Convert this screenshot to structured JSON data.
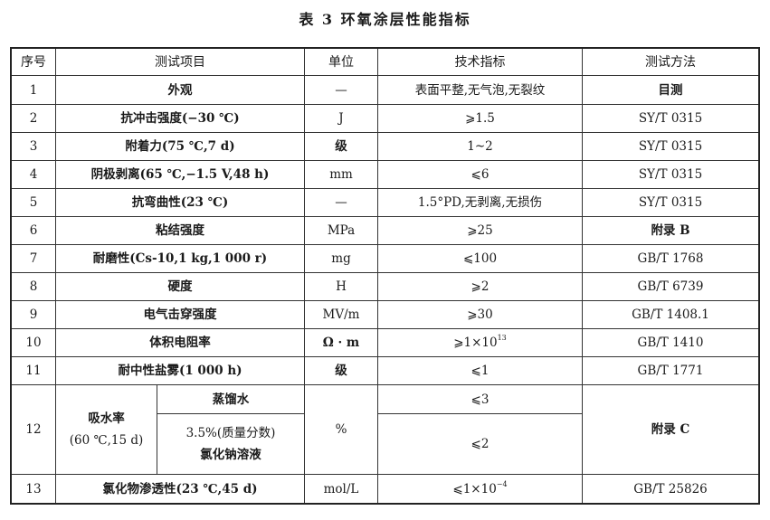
{
  "title": "表 3  环氧涂层性能指标",
  "headers": [
    "序号",
    "测试项目",
    "单位",
    "技术指标",
    "测试方法"
  ],
  "rows": [
    {
      "no": "1",
      "item": "外观",
      "unit": "—",
      "spec": "表面平整,无气泡,无裂纹",
      "method": "目测"
    },
    {
      "no": "2",
      "item": "抗冲击强度(−30 ℃)",
      "unit": "J",
      "spec": "⩾1.5",
      "method": "SY/T 0315"
    },
    {
      "no": "3",
      "item": "附着力(75 ℃,7 d)",
      "unit": "级",
      "spec": "1~2",
      "method": "SY/T 0315"
    },
    {
      "no": "4",
      "item": "阴极剥离(65 ℃,−1.5 V,48 h)",
      "unit": "mm",
      "spec": "⩽6",
      "method": "SY/T 0315"
    },
    {
      "no": "5",
      "item": "抗弯曲性(23 ℃)",
      "unit": "—",
      "spec": "1.5°PD,无剥离,无损伤",
      "method": "SY/T 0315"
    },
    {
      "no": "6",
      "item": "粘结强度",
      "unit": "MPa",
      "spec": "⩾25",
      "method": "附录 B"
    },
    {
      "no": "7",
      "item": "耐磨性(Cs-10,1 kg,1 000 r)",
      "unit": "mg",
      "spec": "⩽100",
      "method": "GB/T 1768"
    },
    {
      "no": "8",
      "item": "硬度",
      "unit": "H",
      "spec": "⩾2",
      "method": "GB/T 6739"
    },
    {
      "no": "9",
      "item": "电气击穿强度",
      "unit": "MV/m",
      "spec": "⩾30",
      "method": "GB/T 1408.1"
    },
    {
      "no": "10",
      "item": "体积电阻率",
      "unit": "Ω · m",
      "spec": "⩾1×10",
      "spec_sup": "13",
      "method": "GB/T 1410"
    },
    {
      "no": "11",
      "item": "耐中性盐雾(1 000 h)",
      "unit": "级",
      "spec": "⩽1",
      "method": "GB/T 1771"
    }
  ],
  "row12": {
    "no": "12",
    "item": "吸水率",
    "item_cond": "(60 ℃,15 d)",
    "sub1": "蒸馏水",
    "sub2a": "3.5%(质量分数)",
    "sub2b": "氯化钠溶液",
    "unit": "%",
    "spec1": "⩽3",
    "spec2": "⩽2",
    "method": "附录 C"
  },
  "row13": {
    "no": "13",
    "item": "氯化物渗透性(23 ℃,45 d)",
    "unit": "mol/L",
    "spec": "⩽1×10",
    "spec_sup": "−4",
    "method": "GB/T 25826"
  }
}
